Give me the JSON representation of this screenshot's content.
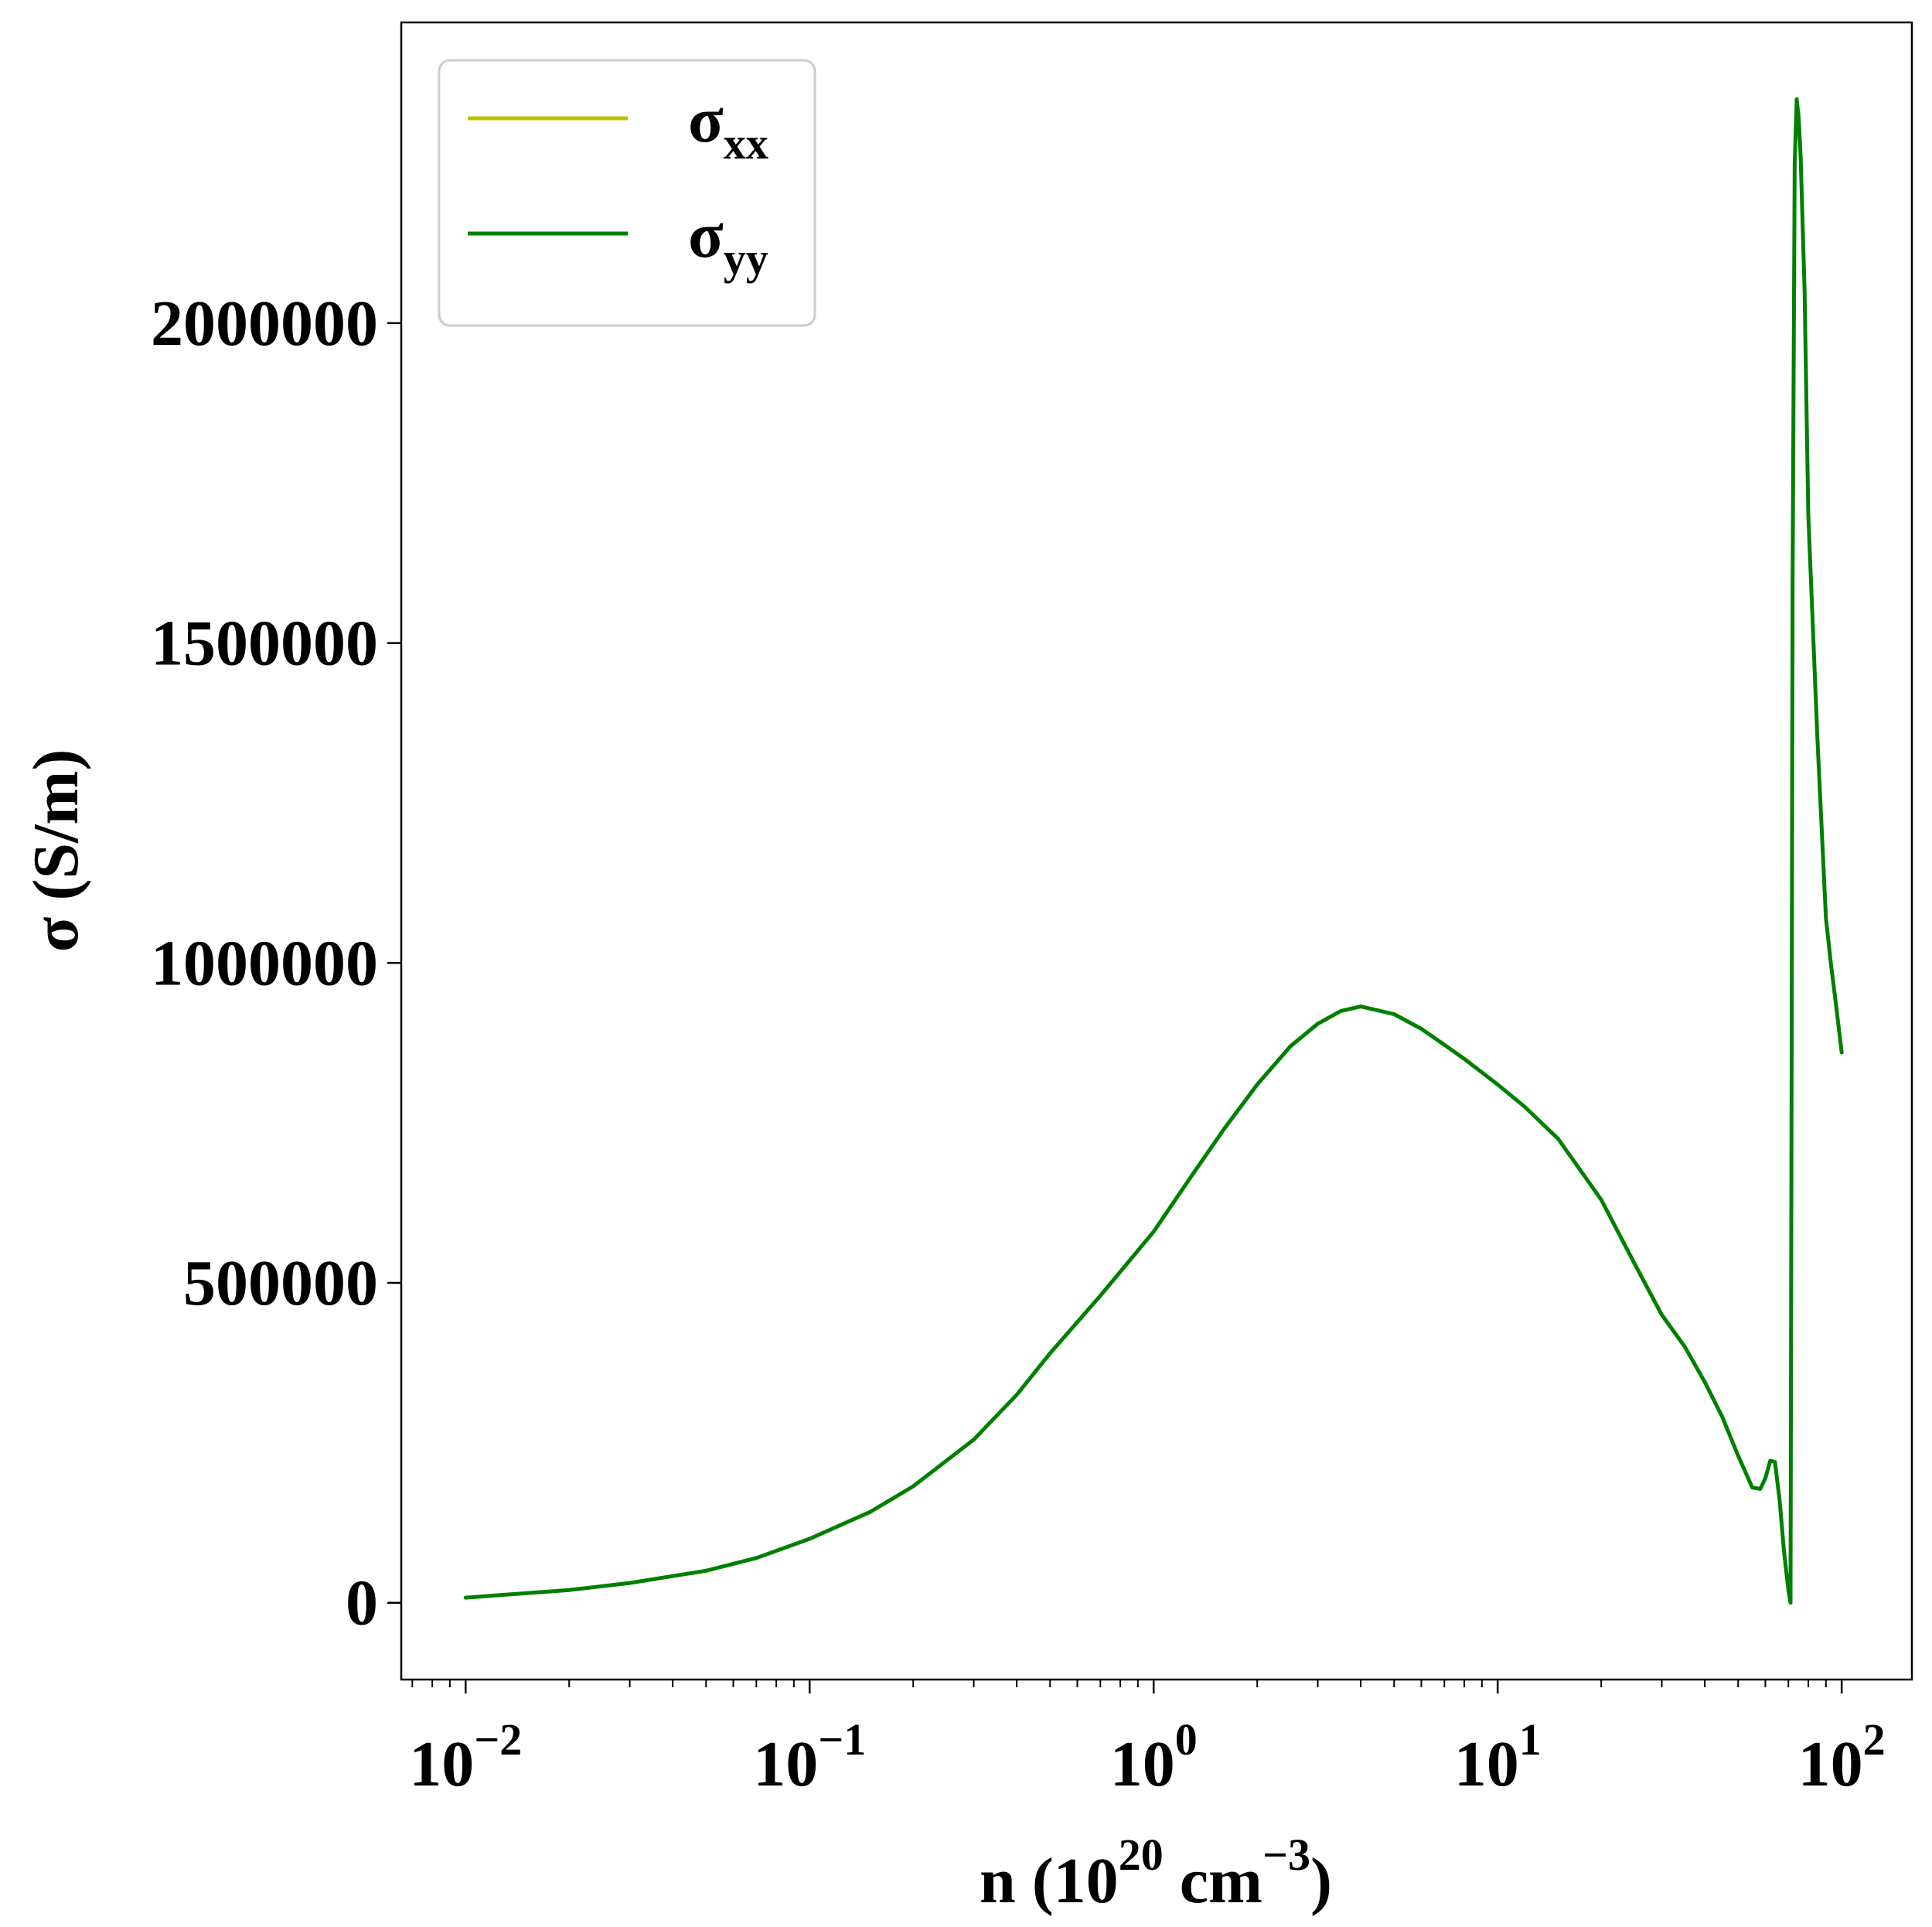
{
  "chart_data": {
    "type": "line",
    "xscale": "log",
    "xlim": [
      0.0065,
      160
    ],
    "ylim": [
      -120000,
      2470000
    ],
    "xticks": [
      {
        "value": 0.01,
        "base": "10",
        "exp": "−2"
      },
      {
        "value": 0.1,
        "base": "10",
        "exp": "−1"
      },
      {
        "value": 1,
        "base": "10",
        "exp": "0"
      },
      {
        "value": 10,
        "base": "10",
        "exp": "1"
      },
      {
        "value": 100,
        "base": "10",
        "exp": "2"
      }
    ],
    "yticks": [
      0,
      500000,
      1000000,
      1500000,
      2000000
    ],
    "ytick_labels": [
      "0",
      "500000",
      "1000000",
      "1500000",
      "2000000"
    ],
    "xlabel": {
      "pre": "n (10",
      "sup1": "20",
      "mid": " cm",
      "sup2": "−3",
      "post": ")"
    },
    "ylabel": "σ (S/m)",
    "legend_position": "upper-left",
    "grid": false,
    "series": [
      {
        "name": "σxx",
        "label_main": "σ",
        "label_sub": "xx",
        "color": "#bfbf00",
        "x": [],
        "y": []
      },
      {
        "name": "σyy",
        "label_main": "σ",
        "label_sub": "yy",
        "color": "#008000",
        "x": [
          0.01,
          0.02,
          0.03,
          0.05,
          0.07,
          0.1,
          0.15,
          0.2,
          0.3,
          0.4,
          0.5,
          0.7,
          1.0,
          1.3,
          1.6,
          2.0,
          2.5,
          3.0,
          3.5,
          4.0,
          5.0,
          6.0,
          7.0,
          8.0,
          10.0,
          12.0,
          15.0,
          20.0,
          25.0,
          30.0,
          35.0,
          40.0,
          45.0,
          50.0,
          55.0,
          58.0,
          60.0,
          62.0,
          64.0,
          66.0,
          68.0,
          70.0,
          71.0,
          72.0,
          73.0,
          74.0,
          75.0,
          76.0,
          78.0,
          80.0,
          85.0,
          90.0,
          93.0,
          96.0,
          100.0
        ],
        "y": [
          8000,
          20000,
          31000,
          50000,
          70000,
          100000,
          142000,
          182000,
          255000,
          325000,
          390000,
          480000,
          580000,
          670000,
          740000,
          810000,
          870000,
          905000,
          925000,
          932000,
          920000,
          897000,
          872000,
          850000,
          810000,
          775000,
          725000,
          630000,
          530000,
          450000,
          400000,
          345000,
          290000,
          230000,
          180000,
          178000,
          195000,
          222000,
          220000,
          160000,
          80000,
          20000,
          0,
          1600000,
          2250000,
          2350000,
          2320000,
          2260000,
          2050000,
          1700000,
          1350000,
          1070000,
          1000000,
          940000,
          860000
        ]
      }
    ]
  }
}
